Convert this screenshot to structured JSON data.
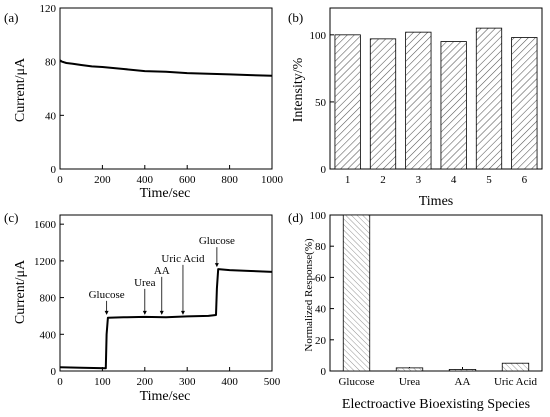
{
  "chart_data": [
    {
      "panel": "(a)",
      "type": "line",
      "xlabel": "Time/sec",
      "ylabel": "Current/μA",
      "xlim": [
        0,
        1000
      ],
      "ylim": [
        0,
        120
      ],
      "xticks": [
        0,
        200,
        400,
        600,
        800,
        1000
      ],
      "yticks": [
        0,
        40,
        80,
        120
      ],
      "series": [
        {
          "x": [
            0,
            10,
            30,
            60,
            100,
            150,
            200,
            300,
            400,
            500,
            600,
            700,
            800,
            900,
            1000
          ],
          "y": [
            81,
            80,
            79,
            78.5,
            77.5,
            76.5,
            76,
            74.5,
            73,
            72.5,
            71.5,
            71,
            70.5,
            70,
            69.5
          ]
        }
      ]
    },
    {
      "panel": "(b)",
      "type": "bar",
      "xlabel": "Times",
      "ylabel": "Intensity/%",
      "ylim": [
        0,
        120
      ],
      "yticks": [
        0,
        50,
        100
      ],
      "categories": [
        "1",
        "2",
        "3",
        "4",
        "5",
        "6"
      ],
      "values": [
        100,
        97,
        102,
        95,
        105,
        98
      ]
    },
    {
      "panel": "(c)",
      "type": "line",
      "xlabel": "Time/sec",
      "ylabel": "Current/μA",
      "xlim": [
        0,
        500
      ],
      "ylim": [
        0,
        1700
      ],
      "xticks": [
        0,
        100,
        200,
        300,
        400,
        500
      ],
      "yticks": [
        0,
        400,
        800,
        1200,
        1600
      ],
      "series": [
        {
          "x": [
            0,
            50,
            108,
            110,
            113,
            150,
            200,
            250,
            300,
            350,
            368,
            370,
            373,
            400,
            450,
            500
          ],
          "y": [
            40,
            35,
            30,
            400,
            580,
            585,
            590,
            585,
            595,
            600,
            610,
            900,
            1110,
            1100,
            1090,
            1080
          ]
        }
      ],
      "annotations": [
        {
          "label": "Glucose",
          "x": 110,
          "y": 590
        },
        {
          "label": "Urea",
          "x": 200,
          "y": 590
        },
        {
          "label": "AA",
          "x": 240,
          "y": 590
        },
        {
          "label": "Uric Acid",
          "x": 290,
          "y": 590
        },
        {
          "label": "Glucose",
          "x": 370,
          "y": 1110
        }
      ]
    },
    {
      "panel": "(d)",
      "type": "bar",
      "xlabel": "Electroactive Bioexisting Species",
      "ylabel": "Normalized Response(%)",
      "ylim": [
        0,
        100
      ],
      "yticks": [
        0,
        20,
        40,
        60,
        80,
        100
      ],
      "categories": [
        "Glucose",
        "Urea",
        "AA",
        "Uric Acid"
      ],
      "values": [
        100,
        2,
        1,
        5
      ]
    }
  ]
}
